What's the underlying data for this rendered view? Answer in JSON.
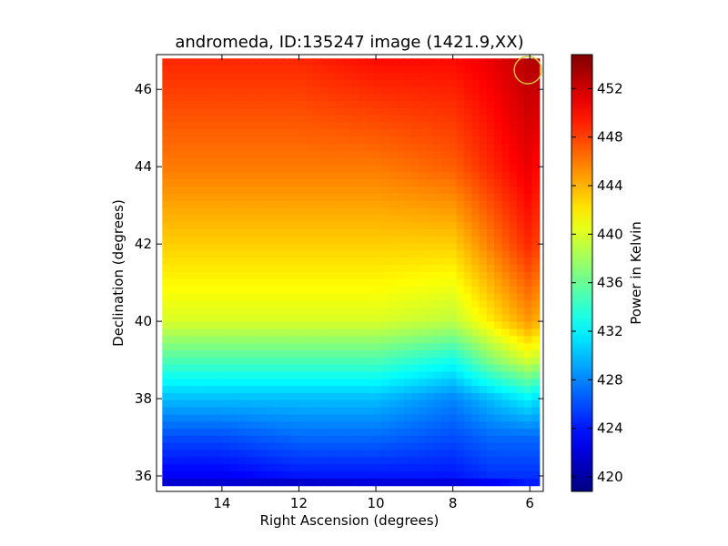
{
  "chart_data": {
    "type": "heatmap",
    "title": "andromeda, ID:135247 image (1421.9,XX)",
    "xlabel": "Right Ascension (degrees)",
    "ylabel": "Declination (degrees)",
    "xlim": [
      15.7,
      5.65
    ],
    "ylim": [
      35.6,
      46.9
    ],
    "x_ticks": [
      14,
      12,
      10,
      8,
      6
    ],
    "y_ticks": [
      36,
      38,
      40,
      42,
      44,
      46
    ],
    "x_axis_inverted": true,
    "colormap": "jet",
    "colorbar": {
      "label": "Power in Kelvin",
      "range": [
        418.8,
        454.8
      ],
      "ticks": [
        420,
        424,
        428,
        432,
        436,
        440,
        444,
        448,
        452
      ]
    },
    "marker": {
      "shape": "circle",
      "ra": 6.05,
      "dec": 46.5,
      "color": "#d4c23a"
    },
    "data_extent": {
      "ra": [
        15.55,
        5.75
      ],
      "dec": [
        35.75,
        46.8
      ]
    },
    "grid_ra": [
      15.5,
      14,
      12,
      10,
      8,
      7,
      6,
      5.8
    ],
    "grid_dec": [
      46.8,
      44,
      42,
      40,
      39,
      38,
      37,
      36,
      35.75
    ],
    "grid_values": [
      [
        449,
        449,
        449,
        450,
        450,
        451,
        453,
        453
      ],
      [
        446,
        446,
        446,
        446,
        447,
        449,
        451,
        450
      ],
      [
        443,
        443,
        443,
        443,
        443,
        446,
        449,
        448
      ],
      [
        440,
        440,
        440,
        440,
        439,
        442,
        445,
        444
      ],
      [
        435,
        435,
        435,
        435,
        433,
        437,
        440,
        439
      ],
      [
        430,
        430,
        430,
        430,
        428,
        430,
        432,
        431
      ],
      [
        426,
        426,
        427,
        427,
        426,
        427,
        427,
        427
      ],
      [
        423,
        423,
        424,
        424,
        424,
        425,
        425,
        425
      ],
      [
        421,
        421,
        420,
        421,
        421,
        422,
        424,
        424
      ]
    ]
  }
}
